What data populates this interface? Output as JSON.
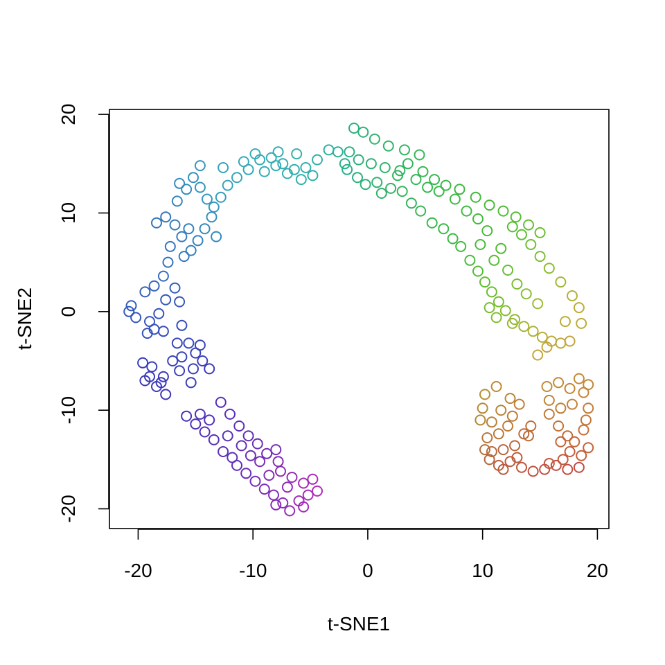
{
  "chart_data": {
    "type": "scatter",
    "title": "",
    "xlabel": "t-SNE1",
    "ylabel": "t-SNE2",
    "xlim": [
      -22.5,
      21
    ],
    "ylim": [
      -22,
      20.5
    ],
    "xticks": [
      -20,
      -10,
      0,
      10,
      20
    ],
    "yticks": [
      -20,
      -10,
      0,
      10,
      20
    ],
    "xtick_labels": [
      "-20",
      "-10",
      "0",
      "10",
      "20"
    ],
    "ytick_labels": [
      "-20",
      "-10",
      "0",
      "10",
      "20"
    ],
    "grid": false,
    "legend": "none",
    "marker": "open-circle",
    "color_mapping": "rainbow gradient along curve (hue varies with position)",
    "points": [
      [
        -1.2,
        18.6,
        "#2db07a"
      ],
      [
        -0.4,
        18.2,
        "#2db27a"
      ],
      [
        0.6,
        17.5,
        "#2fb36f"
      ],
      [
        1.8,
        16.8,
        "#2fb468"
      ],
      [
        3.2,
        16.4,
        "#31b65f"
      ],
      [
        4.5,
        15.9,
        "#33b757"
      ],
      [
        -1.6,
        16.2,
        "#2cb083"
      ],
      [
        -0.8,
        15.4,
        "#2db07a"
      ],
      [
        0.3,
        15.0,
        "#2eb274"
      ],
      [
        1.5,
        14.6,
        "#30b46a"
      ],
      [
        2.8,
        14.3,
        "#31b563"
      ],
      [
        -1.8,
        14.4,
        "#2bb08b"
      ],
      [
        -0.9,
        13.6,
        "#2db07e"
      ],
      [
        0.8,
        13.1,
        "#2fb370"
      ],
      [
        2.0,
        12.5,
        "#31b566"
      ],
      [
        3.0,
        12.2,
        "#33b75d"
      ],
      [
        -2.0,
        15.0,
        "#2bb08d"
      ],
      [
        -0.2,
        12.9,
        "#2eb275"
      ],
      [
        1.2,
        12.0,
        "#30b36b"
      ],
      [
        2.6,
        13.8,
        "#31b660"
      ],
      [
        3.5,
        15.0,
        "#32b65b"
      ],
      [
        4.8,
        14.2,
        "#34b853"
      ],
      [
        5.8,
        13.4,
        "#36b94b"
      ],
      [
        6.8,
        12.8,
        "#38ba45"
      ],
      [
        8.0,
        12.4,
        "#3bba3f"
      ],
      [
        9.4,
        11.6,
        "#41bb38"
      ],
      [
        10.6,
        10.8,
        "#48bc34"
      ],
      [
        11.8,
        10.2,
        "#50bc33"
      ],
      [
        12.9,
        9.6,
        "#58bd32"
      ],
      [
        14.0,
        8.8,
        "#62be31"
      ],
      [
        15.0,
        8.0,
        "#6cbe32"
      ],
      [
        3.8,
        11.0,
        "#33b75e"
      ],
      [
        4.6,
        10.2,
        "#34b858"
      ],
      [
        5.6,
        9.0,
        "#36b94e"
      ],
      [
        6.6,
        8.4,
        "#38ba47"
      ],
      [
        7.4,
        7.4,
        "#3bbb41"
      ],
      [
        8.1,
        6.6,
        "#3fbb3c"
      ],
      [
        8.9,
        5.2,
        "#47bc36"
      ],
      [
        9.6,
        4.1,
        "#52bd33"
      ],
      [
        10.2,
        3.0,
        "#5ebd31"
      ],
      [
        10.8,
        2.0,
        "#6abe31"
      ],
      [
        11.4,
        1.0,
        "#78bc31"
      ],
      [
        12.0,
        0.1,
        "#87bb31"
      ],
      [
        12.8,
        -0.8,
        "#96b832"
      ],
      [
        13.6,
        -1.5,
        "#a4b533"
      ],
      [
        14.4,
        -2.0,
        "#afb234"
      ],
      [
        15.2,
        -2.6,
        "#b8ae35"
      ],
      [
        16.0,
        -3.0,
        "#bdaa36"
      ],
      [
        16.8,
        -3.2,
        "#c0a737"
      ],
      [
        17.6,
        -3.0,
        "#c2a438"
      ],
      [
        18.4,
        0.4,
        "#bdab34"
      ],
      [
        17.8,
        1.6,
        "#b5b034"
      ],
      [
        16.8,
        3.0,
        "#a0b833"
      ],
      [
        15.8,
        4.4,
        "#8ebc32"
      ],
      [
        15.0,
        5.6,
        "#7dbe31"
      ],
      [
        14.2,
        6.8,
        "#6dbe31"
      ],
      [
        13.4,
        7.8,
        "#60be31"
      ],
      [
        12.6,
        8.6,
        "#57bd32"
      ],
      [
        11.6,
        6.4,
        "#50bc33"
      ],
      [
        11.0,
        5.2,
        "#56bd32"
      ],
      [
        12.2,
        4.2,
        "#68be31"
      ],
      [
        13.0,
        2.8,
        "#7cbe31"
      ],
      [
        13.8,
        1.8,
        "#8cbd31"
      ],
      [
        14.8,
        0.8,
        "#9dba32"
      ],
      [
        9.6,
        9.4,
        "#41bb38"
      ],
      [
        10.4,
        8.2,
        "#47bc35"
      ],
      [
        8.6,
        10.2,
        "#3dbb3d"
      ],
      [
        7.6,
        11.4,
        "#3aba41"
      ],
      [
        6.2,
        12.2,
        "#37b949"
      ],
      [
        5.2,
        12.6,
        "#35b850"
      ],
      [
        4.2,
        13.4,
        "#33b757"
      ],
      [
        9.8,
        6.8,
        "#46bc36"
      ],
      [
        10.6,
        0.4,
        "#77bd31"
      ],
      [
        11.2,
        -0.6,
        "#87bc31"
      ],
      [
        12.6,
        -1.2,
        "#9ab733"
      ],
      [
        14.8,
        -4.4,
        "#c0a737"
      ],
      [
        15.6,
        -3.6,
        "#c1a638"
      ],
      [
        17.2,
        -1.0,
        "#b9ad35"
      ],
      [
        18.6,
        -1.2,
        "#bdab35"
      ],
      [
        -2.6,
        16.2,
        "#2bb09a"
      ],
      [
        -3.4,
        16.4,
        "#2eb1a4"
      ],
      [
        -4.4,
        15.4,
        "#30b1aa"
      ],
      [
        -5.4,
        14.6,
        "#31b0ae"
      ],
      [
        -6.4,
        14.4,
        "#32afb0"
      ],
      [
        -7.4,
        15.0,
        "#33aeb2"
      ],
      [
        -8.4,
        15.6,
        "#34adb4"
      ],
      [
        -9.4,
        15.4,
        "#34abb6"
      ],
      [
        -10.4,
        14.4,
        "#35a9b8"
      ],
      [
        -11.4,
        13.6,
        "#36a6b9"
      ],
      [
        -4.8,
        13.8,
        "#2fb1a8"
      ],
      [
        -5.8,
        13.4,
        "#31b0ad"
      ],
      [
        -7.0,
        14.0,
        "#33aeb1"
      ],
      [
        -8.0,
        14.8,
        "#34adb3"
      ],
      [
        -9.0,
        14.2,
        "#35abb6"
      ],
      [
        -6.2,
        16.0,
        "#31b0ad"
      ],
      [
        -7.8,
        16.2,
        "#33aeb2"
      ],
      [
        -9.8,
        16.0,
        "#35acb6"
      ],
      [
        -10.8,
        15.2,
        "#36aab8"
      ],
      [
        -12.2,
        12.8,
        "#35a2ba"
      ],
      [
        -12.8,
        11.6,
        "#359cbb"
      ],
      [
        -13.4,
        10.6,
        "#3597bc"
      ],
      [
        -14.0,
        11.4,
        "#3595bc"
      ],
      [
        -14.6,
        12.6,
        "#3593bd"
      ],
      [
        -15.2,
        13.6,
        "#3591bd"
      ],
      [
        -15.8,
        12.4,
        "#358dbd"
      ],
      [
        -16.4,
        13.0,
        "#358abd"
      ],
      [
        -12.6,
        14.6,
        "#35a3ba"
      ],
      [
        -13.6,
        9.6,
        "#358ebd"
      ],
      [
        -14.2,
        8.4,
        "#3589bd"
      ],
      [
        -14.8,
        7.2,
        "#3583bd"
      ],
      [
        -15.4,
        6.2,
        "#347ebd"
      ],
      [
        -16.2,
        7.6,
        "#347cbc"
      ],
      [
        -16.8,
        8.8,
        "#347abc"
      ],
      [
        -17.6,
        9.6,
        "#3477bc"
      ],
      [
        -18.4,
        9.0,
        "#3474bc"
      ],
      [
        -17.2,
        6.6,
        "#3475bc"
      ],
      [
        -16.0,
        5.6,
        "#3479bd"
      ],
      [
        -14.6,
        14.8,
        "#3596bc"
      ],
      [
        -13.2,
        7.6,
        "#3586bd"
      ],
      [
        -15.6,
        8.4,
        "#3580bd"
      ],
      [
        -16.6,
        11.2,
        "#3585bd"
      ],
      [
        -17.4,
        5.0,
        "#3470bc"
      ],
      [
        -17.8,
        3.6,
        "#346bbc"
      ],
      [
        -18.6,
        2.6,
        "#3465bc"
      ],
      [
        -19.4,
        2.0,
        "#3461bc"
      ],
      [
        -20.6,
        0.6,
        "#345bbc"
      ],
      [
        -20.8,
        0.0,
        "#3459bc"
      ],
      [
        -20.2,
        -0.6,
        "#3457bc"
      ],
      [
        -19.0,
        -1.0,
        "#3553bb"
      ],
      [
        -18.2,
        -0.2,
        "#3553bb"
      ],
      [
        -17.6,
        1.2,
        "#3557bb"
      ],
      [
        -16.8,
        2.4,
        "#345ebc"
      ],
      [
        -16.4,
        1.0,
        "#3558bb"
      ],
      [
        -19.2,
        -2.2,
        "#3550bb"
      ],
      [
        -18.6,
        -1.8,
        "#3550bb"
      ],
      [
        -17.8,
        -2.0,
        "#354dbb"
      ],
      [
        -16.2,
        -1.4,
        "#364bba"
      ],
      [
        -15.6,
        -3.2,
        "#3846ba"
      ],
      [
        -15.0,
        -4.2,
        "#3a42b9"
      ],
      [
        -14.4,
        -5.0,
        "#3c3eb9"
      ],
      [
        -13.8,
        -5.8,
        "#3d3bb8"
      ],
      [
        -15.2,
        -5.8,
        "#3b3fb9"
      ],
      [
        -16.2,
        -4.6,
        "#3942b9"
      ],
      [
        -16.6,
        -3.2,
        "#3846ba"
      ],
      [
        -14.6,
        -3.4,
        "#3a43b9"
      ],
      [
        -16.4,
        -6.0,
        "#3a40b9"
      ],
      [
        -15.4,
        -7.2,
        "#3c3db9"
      ],
      [
        -19.6,
        -5.2,
        "#383fba"
      ],
      [
        -19.0,
        -6.6,
        "#3a3bb9"
      ],
      [
        -18.4,
        -7.6,
        "#3c38b9"
      ],
      [
        -17.6,
        -8.4,
        "#3e35b8"
      ],
      [
        -18.8,
        -5.6,
        "#393dba"
      ],
      [
        -17.8,
        -6.6,
        "#3b3ab9"
      ],
      [
        -18.0,
        -7.2,
        "#3c38b9"
      ],
      [
        -19.4,
        -7.0,
        "#3a3ab9"
      ],
      [
        -17.0,
        -5.0,
        "#3940ba"
      ],
      [
        -15.8,
        -10.6,
        "#4a31b8"
      ],
      [
        -15.0,
        -11.4,
        "#4e31b8"
      ],
      [
        -14.2,
        -12.2,
        "#5330b8"
      ],
      [
        -13.4,
        -13.0,
        "#572fb8"
      ],
      [
        -12.6,
        -14.2,
        "#5d2fb8"
      ],
      [
        -12.8,
        -9.2,
        "#552fb8"
      ],
      [
        -12.0,
        -10.4,
        "#5a2fb8"
      ],
      [
        -11.2,
        -11.6,
        "#5f2fb8"
      ],
      [
        -10.4,
        -12.6,
        "#642eb8"
      ],
      [
        -9.6,
        -13.4,
        "#6a2eb8"
      ],
      [
        -8.8,
        -14.4,
        "#712eb8"
      ],
      [
        -8.0,
        -14.0,
        "#752eb8"
      ],
      [
        -14.6,
        -10.4,
        "#4f30b8"
      ],
      [
        -13.8,
        -11.0,
        "#522fb8"
      ],
      [
        -12.2,
        -12.6,
        "#5a2fb8"
      ],
      [
        -11.0,
        -13.6,
        "#612fb8"
      ],
      [
        -10.2,
        -14.6,
        "#672eb8"
      ],
      [
        -11.4,
        -15.6,
        "#632eb8"
      ],
      [
        -10.6,
        -16.4,
        "#692eb8"
      ],
      [
        -9.8,
        -17.2,
        "#712db8"
      ],
      [
        -9.0,
        -18.0,
        "#7a2db8"
      ],
      [
        -8.2,
        -18.6,
        "#842cb8"
      ],
      [
        -7.4,
        -19.4,
        "#8e2cb8"
      ],
      [
        -6.8,
        -20.2,
        "#962cb8"
      ],
      [
        -6.0,
        -19.2,
        "#9d2cb8"
      ],
      [
        -5.2,
        -18.6,
        "#a62cb8"
      ],
      [
        -4.4,
        -18.2,
        "#ad2cb8"
      ],
      [
        -5.6,
        -17.4,
        "#a12cb8"
      ],
      [
        -6.6,
        -16.8,
        "#972cb8"
      ],
      [
        -7.6,
        -16.2,
        "#8c2cb8"
      ],
      [
        -8.6,
        -16.6,
        "#822cb8"
      ],
      [
        -9.4,
        -15.2,
        "#782db8"
      ],
      [
        -7.0,
        -17.8,
        "#932cb8"
      ],
      [
        -8.0,
        -19.6,
        "#872cb8"
      ],
      [
        -4.8,
        -17.0,
        "#a82cb8"
      ],
      [
        -5.6,
        -19.8,
        "#a02cb8"
      ],
      [
        -7.8,
        -15.2,
        "#862db8"
      ],
      [
        -11.8,
        -14.8,
        "#5f2fb8"
      ],
      [
        10.2,
        -8.4,
        "#b88f33"
      ],
      [
        11.2,
        -7.6,
        "#bb8c34"
      ],
      [
        12.4,
        -8.8,
        "#bd8434"
      ],
      [
        13.2,
        -9.4,
        "#be7e35"
      ],
      [
        10.0,
        -9.8,
        "#b78934"
      ],
      [
        10.8,
        -11.2,
        "#b97f35"
      ],
      [
        11.4,
        -12.4,
        "#bb7736"
      ],
      [
        12.2,
        -11.6,
        "#bd7a35"
      ],
      [
        9.8,
        -11.0,
        "#b68635"
      ],
      [
        10.4,
        -12.8,
        "#b87837"
      ],
      [
        10.2,
        -14.0,
        "#b86e38"
      ],
      [
        10.6,
        -15.0,
        "#b9653a"
      ],
      [
        11.4,
        -15.6,
        "#bb5d3b"
      ],
      [
        12.4,
        -15.2,
        "#bd5a3c"
      ],
      [
        13.4,
        -15.8,
        "#be553d"
      ],
      [
        14.4,
        -16.2,
        "#bf513e"
      ],
      [
        15.4,
        -16.0,
        "#c04f3e"
      ],
      [
        16.4,
        -15.6,
        "#c14e3e"
      ],
      [
        17.4,
        -16.0,
        "#c24c3f"
      ],
      [
        18.4,
        -15.8,
        "#c24b3f"
      ],
      [
        10.8,
        -14.2,
        "#ba693a"
      ],
      [
        11.8,
        -14.0,
        "#bc6539"
      ],
      [
        12.8,
        -13.6,
        "#bd6639"
      ],
      [
        13.6,
        -12.4,
        "#be6b38"
      ],
      [
        14.0,
        -12.6,
        "#bf6938"
      ],
      [
        14.2,
        -11.6,
        "#bf6e37"
      ],
      [
        11.6,
        -10.0,
        "#bb8335"
      ],
      [
        12.6,
        -10.6,
        "#bd7c35"
      ],
      [
        15.6,
        -7.6,
        "#c18a34"
      ],
      [
        16.6,
        -7.2,
        "#c28a34"
      ],
      [
        17.6,
        -7.8,
        "#c38634"
      ],
      [
        18.4,
        -6.8,
        "#c48934"
      ],
      [
        19.2,
        -7.4,
        "#c48734"
      ],
      [
        15.8,
        -9.0,
        "#c18335"
      ],
      [
        16.8,
        -9.8,
        "#c27e35"
      ],
      [
        17.8,
        -9.4,
        "#c38035"
      ],
      [
        18.8,
        -8.2,
        "#c48434"
      ],
      [
        19.2,
        -9.8,
        "#c47c35"
      ],
      [
        16.6,
        -11.6,
        "#c27236"
      ],
      [
        17.4,
        -12.6,
        "#c36b37"
      ],
      [
        18.0,
        -13.2,
        "#c36838"
      ],
      [
        18.8,
        -12.0,
        "#c46f37"
      ],
      [
        19.2,
        -13.8,
        "#c46339"
      ],
      [
        18.6,
        -14.6,
        "#c45d3a"
      ],
      [
        17.6,
        -14.2,
        "#c35f3a"
      ],
      [
        16.8,
        -13.2,
        "#c2663a"
      ],
      [
        15.8,
        -10.4,
        "#c17a35"
      ],
      [
        19.0,
        -11.0,
        "#c47436"
      ],
      [
        17.0,
        -15.0,
        "#c2593b"
      ],
      [
        15.8,
        -15.4,
        "#c1553c"
      ],
      [
        13.0,
        -14.8,
        "#be5c3b"
      ],
      [
        11.8,
        -16.0,
        "#bc5a3c"
      ]
    ]
  }
}
